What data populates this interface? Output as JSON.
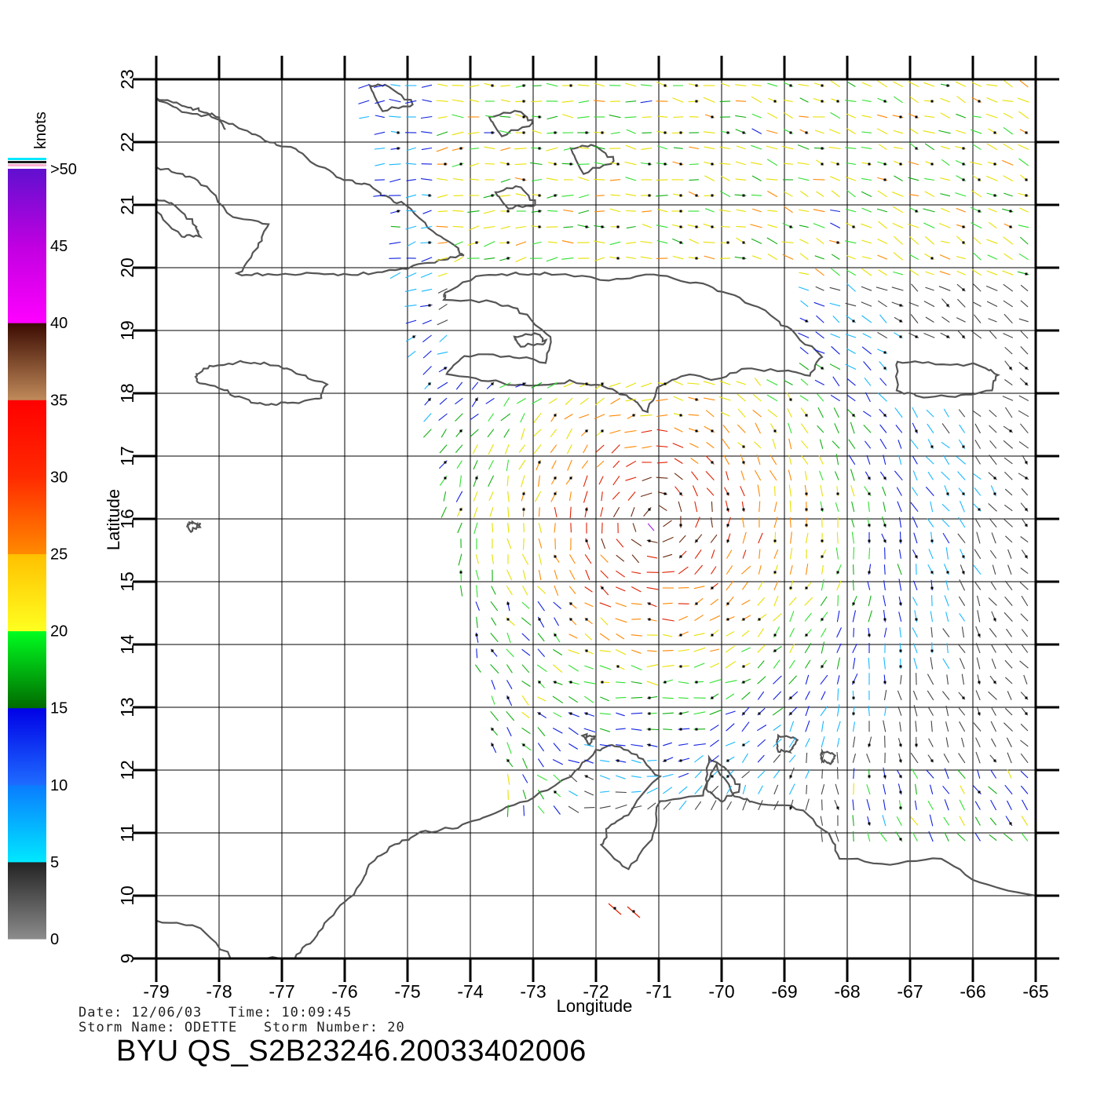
{
  "map": {
    "lon_range": [
      -79,
      -65
    ],
    "lat_range": [
      9,
      23
    ],
    "x_axis_title": "Longitude",
    "y_axis_title": "Latitude",
    "x_tick_labels": [
      "-79",
      "-78",
      "-77",
      "-76",
      "-75",
      "-74",
      "-73",
      "-72",
      "-71",
      "-70",
      "-69",
      "-68",
      "-67",
      "-66",
      "-65"
    ],
    "y_tick_labels": [
      "9",
      "10",
      "11",
      "12",
      "13",
      "14",
      "15",
      "16",
      "17",
      "18",
      "19",
      "20",
      "21",
      "22",
      "23"
    ],
    "grid": true,
    "coastline_color": "#555555"
  },
  "legend": {
    "title": "knots",
    "bands": [
      {
        "from": 0,
        "to": 5,
        "colors": [
          "#8c8c8c",
          "#222222"
        ]
      },
      {
        "from": 5,
        "to": 10,
        "colors": [
          "#00e8ff",
          "#0a7bff"
        ]
      },
      {
        "from": 10,
        "to": 15,
        "colors": [
          "#1e6cff",
          "#0000e6"
        ]
      },
      {
        "from": 15,
        "to": 20,
        "colors": [
          "#006a00",
          "#00ff20"
        ]
      },
      {
        "from": 20,
        "to": 25,
        "colors": [
          "#ffff20",
          "#ffc000"
        ]
      },
      {
        "from": 25,
        "to": 30,
        "colors": [
          "#ff8a00",
          "#ff2a00"
        ]
      },
      {
        "from": 30,
        "to": 35,
        "colors": [
          "#ff2a00",
          "#ff0000"
        ]
      },
      {
        "from": 35,
        "to": 40,
        "colors": [
          "#c08a5a",
          "#3a0a00"
        ]
      },
      {
        "from": 40,
        "to": 45,
        "colors": [
          "#ff00ff",
          "#c000e0"
        ]
      },
      {
        "from": 45,
        "to": 50,
        "colors": [
          "#c000e0",
          "#6010d0"
        ]
      }
    ],
    "labels": [
      "0",
      "5",
      "10",
      "15",
      "20",
      "25",
      "30",
      "35",
      "40",
      "45",
      ">50"
    ]
  },
  "info": {
    "date_line": "Date: 12/06/03   Time: 10:09:45",
    "storm_line": "Storm Name: ODETTE   Storm Number: 20",
    "product_id": "BYU QS_S2B23246.20033402006"
  },
  "wind_colors": {
    "calm": "#444444",
    "cyan": "#18b8ff",
    "blue": "#1020e0",
    "green": "#10b010",
    "lime": "#30e030",
    "yellow": "#e8e000",
    "orange": "#ff8800",
    "red": "#e02000",
    "brown": "#6a2a10",
    "purple": "#a020e0"
  }
}
